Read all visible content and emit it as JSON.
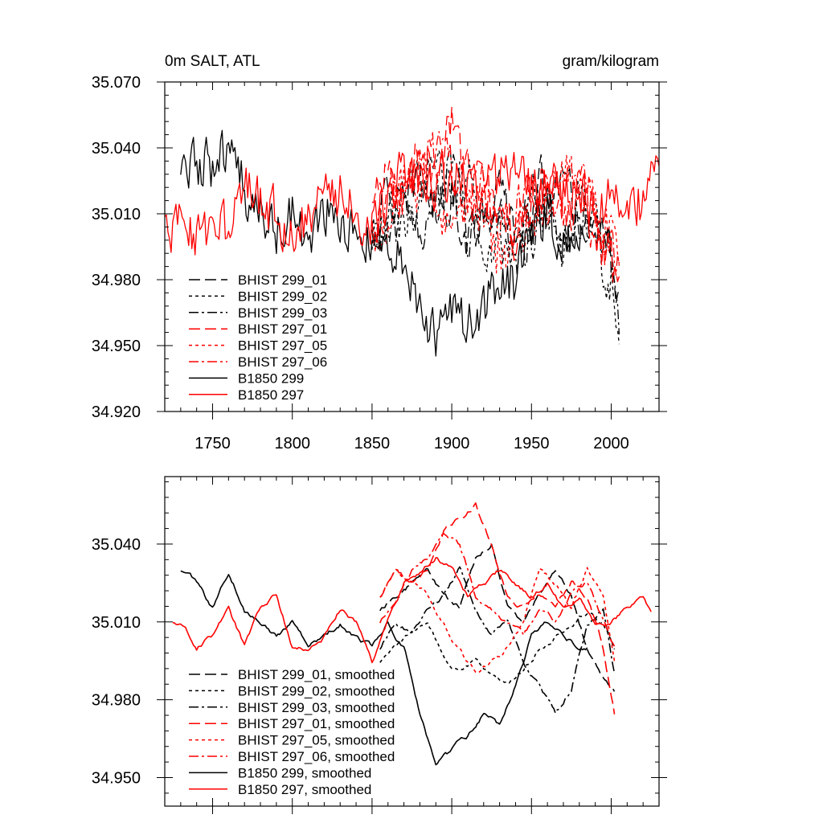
{
  "chart_data": [
    {
      "type": "line",
      "title_left": "0m SALT, ATL",
      "title_right": "gram/kilogram",
      "xlabel": "",
      "ylabel": "",
      "xlim": [
        1720,
        2030
      ],
      "ylim": [
        34.92,
        35.07
      ],
      "xticks": [
        "1750",
        "1800",
        "1850",
        "1900",
        "1950",
        "2000"
      ],
      "yticks": [
        "35.070",
        "35.040",
        "35.010",
        "34.980",
        "34.950",
        "34.920"
      ],
      "colors": {
        "black": "#000000",
        "red": "#ff0000"
      },
      "series": [
        {
          "name": "BHIST 299_01",
          "color": "#000000",
          "dash": "long-dash",
          "x": [
            1850,
            1860,
            1870,
            1880,
            1890,
            1900,
            1910,
            1920,
            1930,
            1940,
            1950,
            1960,
            1970,
            1980,
            1990,
            2000,
            2005
          ],
          "values": [
            35.0,
            35.02,
            35.01,
            35.03,
            35.01,
            35.02,
            35.0,
            35.01,
            35.02,
            35.0,
            35.01,
            35.03,
            35.02,
            35.01,
            35.0,
            34.99,
            34.97
          ]
        },
        {
          "name": "BHIST 299_02",
          "color": "#000000",
          "dash": "short-dash",
          "x": [
            1850,
            1860,
            1870,
            1880,
            1890,
            1900,
            1910,
            1920,
            1930,
            1940,
            1950,
            1960,
            1970,
            1980,
            1990,
            2000,
            2005
          ],
          "values": [
            34.99,
            35.01,
            35.0,
            35.02,
            35.04,
            35.01,
            35.03,
            34.98,
            35.0,
            34.99,
            35.02,
            35.01,
            34.99,
            35.02,
            35.0,
            34.98,
            34.95
          ]
        },
        {
          "name": "BHIST 299_03",
          "color": "#000000",
          "dash": "dash-dot",
          "x": [
            1850,
            1860,
            1870,
            1880,
            1890,
            1900,
            1910,
            1920,
            1930,
            1940,
            1950,
            1960,
            1970,
            1980,
            1990,
            2000,
            2005
          ],
          "values": [
            35.0,
            35.0,
            35.01,
            35.0,
            35.02,
            35.03,
            35.0,
            35.01,
            35.01,
            34.99,
            35.0,
            35.01,
            35.0,
            35.01,
            35.01,
            34.99,
            34.96
          ]
        },
        {
          "name": "BHIST 297_01",
          "color": "#ff0000",
          "dash": "long-dash",
          "x": [
            1850,
            1860,
            1870,
            1880,
            1890,
            1900,
            1910,
            1920,
            1930,
            1940,
            1950,
            1960,
            1970,
            1980,
            1990,
            2000,
            2005
          ],
          "values": [
            35.01,
            35.03,
            35.02,
            35.04,
            35.03,
            35.05,
            35.03,
            35.02,
            35.01,
            35.0,
            35.02,
            35.03,
            35.01,
            35.02,
            35.0,
            34.99,
            34.97
          ]
        },
        {
          "name": "BHIST 297_05",
          "color": "#ff0000",
          "dash": "short-dash",
          "x": [
            1850,
            1860,
            1870,
            1880,
            1890,
            1900,
            1910,
            1920,
            1930,
            1940,
            1950,
            1960,
            1970,
            1980,
            1990,
            2000,
            2005
          ],
          "values": [
            35.0,
            35.01,
            35.03,
            35.02,
            35.01,
            35.0,
            35.02,
            35.01,
            34.99,
            35.0,
            35.01,
            35.02,
            35.03,
            35.02,
            35.01,
            35.0,
            34.98
          ]
        },
        {
          "name": "BHIST 297_06",
          "color": "#ff0000",
          "dash": "dash-dot",
          "x": [
            1850,
            1860,
            1870,
            1880,
            1890,
            1900,
            1910,
            1920,
            1930,
            1940,
            1950,
            1960,
            1970,
            1980,
            1990,
            2000,
            2005
          ],
          "values": [
            35.0,
            35.02,
            35.02,
            35.03,
            35.04,
            35.03,
            35.01,
            35.02,
            35.0,
            35.01,
            35.02,
            35.01,
            35.02,
            35.03,
            35.01,
            35.0,
            34.99
          ]
        },
        {
          "name": "B1850 299",
          "color": "#000000",
          "dash": "solid",
          "x": [
            1730,
            1740,
            1750,
            1760,
            1770,
            1780,
            1790,
            1800,
            1810,
            1820,
            1830,
            1840,
            1850,
            1860,
            1870,
            1880,
            1890,
            1900,
            1910,
            1920,
            1930,
            1940,
            1950,
            1960,
            1970,
            1980,
            1985
          ],
          "values": [
            35.02,
            35.035,
            35.03,
            35.04,
            35.02,
            35.01,
            35.0,
            35.01,
            35.0,
            35.01,
            35.005,
            35.0,
            34.995,
            35.0,
            34.99,
            34.97,
            34.95,
            34.965,
            34.96,
            34.97,
            34.975,
            34.98,
            35.0,
            35.01,
            35.0,
            34.995,
            35.0
          ]
        },
        {
          "name": "B1850 297",
          "color": "#ff0000",
          "dash": "solid",
          "x": [
            1720,
            1730,
            1740,
            1750,
            1760,
            1770,
            1780,
            1790,
            1800,
            1810,
            1820,
            1830,
            1840,
            1850,
            1860,
            1870,
            1880,
            1890,
            1900,
            1910,
            1920,
            1930,
            1940,
            1950,
            1960,
            1970,
            1980,
            1990,
            2000,
            2010,
            2020,
            2025,
            2030
          ],
          "values": [
            35.0,
            35.01,
            35.0,
            35.005,
            35.0,
            35.02,
            35.015,
            35.01,
            35.0,
            35.01,
            35.015,
            35.02,
            35.01,
            35.005,
            35.02,
            35.03,
            35.025,
            35.02,
            35.03,
            35.025,
            35.02,
            35.025,
            35.03,
            35.02,
            35.025,
            35.015,
            35.02,
            35.01,
            35.015,
            35.01,
            35.015,
            35.04,
            35.02
          ]
        }
      ],
      "legend": [
        "BHIST 299_01",
        "BHIST 299_02",
        "BHIST 299_03",
        "BHIST 297_01",
        "BHIST 297_05",
        "BHIST 297_06",
        "B1850 299",
        "B1850 297"
      ]
    },
    {
      "type": "line",
      "xlabel": "",
      "ylabel": "",
      "xlim": [
        1720,
        2030
      ],
      "ylim": [
        34.939,
        35.066
      ],
      "xticks": [],
      "yticks": [
        "35.040",
        "35.010",
        "34.980",
        "34.950"
      ],
      "series": [
        {
          "name": "BHIST 299_01, smoothed",
          "color": "#000000",
          "dash": "long-dash",
          "x": [
            1855,
            1865,
            1875,
            1885,
            1895,
            1905,
            1915,
            1925,
            1935,
            1945,
            1955,
            1965,
            1975,
            1985,
            1995,
            2002
          ],
          "values": [
            35.015,
            35.02,
            35.025,
            35.03,
            35.02,
            35.015,
            35.035,
            35.04,
            35.015,
            35.01,
            35.02,
            35.03,
            35.02,
            35.0,
            34.99,
            34.985
          ]
        },
        {
          "name": "BHIST 299_02, smoothed",
          "color": "#000000",
          "dash": "short-dash",
          "x": [
            1855,
            1865,
            1875,
            1885,
            1895,
            1905,
            1915,
            1925,
            1935,
            1945,
            1955,
            1965,
            1975,
            1985,
            1995,
            2002
          ],
          "values": [
            34.995,
            35.0,
            35.005,
            35.01,
            34.995,
            34.99,
            34.995,
            34.99,
            34.985,
            34.99,
            35.0,
            35.005,
            35.01,
            35.015,
            35.01,
            35.0
          ]
        },
        {
          "name": "BHIST 299_03, smoothed",
          "color": "#000000",
          "dash": "dash-dot",
          "x": [
            1855,
            1865,
            1875,
            1885,
            1895,
            1905,
            1915,
            1925,
            1935,
            1945,
            1955,
            1965,
            1975,
            1985,
            1995,
            2002
          ],
          "values": [
            35.0,
            35.01,
            35.005,
            35.015,
            35.02,
            35.03,
            35.015,
            35.005,
            35.01,
            34.995,
            34.985,
            34.975,
            34.985,
            35.01,
            35.015,
            34.99
          ]
        },
        {
          "name": "BHIST 297_01, smoothed",
          "color": "#ff0000",
          "dash": "long-dash",
          "x": [
            1855,
            1865,
            1875,
            1885,
            1895,
            1905,
            1915,
            1925,
            1935,
            1945,
            1955,
            1965,
            1975,
            1985,
            1995,
            2002
          ],
          "values": [
            35.02,
            35.03,
            35.025,
            35.03,
            35.045,
            35.05,
            35.055,
            35.04,
            35.02,
            35.015,
            35.02,
            35.015,
            35.025,
            35.02,
            35.0,
            34.975
          ]
        },
        {
          "name": "BHIST 297_05, smoothed",
          "color": "#ff0000",
          "dash": "short-dash",
          "x": [
            1855,
            1865,
            1875,
            1885,
            1895,
            1905,
            1915,
            1925,
            1935,
            1945,
            1955,
            1965,
            1975,
            1985,
            1995,
            2002
          ],
          "values": [
            35.02,
            35.03,
            35.025,
            35.02,
            35.01,
            35.0,
            34.99,
            34.995,
            35.0,
            35.01,
            35.03,
            35.025,
            35.015,
            35.03,
            35.02,
            34.995
          ]
        },
        {
          "name": "BHIST 297_06, smoothed",
          "color": "#ff0000",
          "dash": "dash-dot",
          "x": [
            1855,
            1865,
            1875,
            1885,
            1895,
            1905,
            1915,
            1925,
            1935,
            1945,
            1955,
            1965,
            1975,
            1985,
            1995,
            2002
          ],
          "values": [
            35.01,
            35.02,
            35.03,
            35.035,
            35.045,
            35.04,
            35.02,
            35.015,
            35.01,
            35.005,
            35.015,
            35.01,
            35.02,
            35.025,
            35.01,
            35.0
          ]
        },
        {
          "name": "B1850 299, smoothed",
          "color": "#000000",
          "dash": "solid",
          "x": [
            1730,
            1740,
            1750,
            1760,
            1770,
            1780,
            1790,
            1800,
            1810,
            1820,
            1830,
            1840,
            1850,
            1860,
            1870,
            1880,
            1890,
            1900,
            1910,
            1920,
            1930,
            1940,
            1950,
            1960,
            1970,
            1980,
            1985
          ],
          "values": [
            35.03,
            35.025,
            35.015,
            35.03,
            35.015,
            35.01,
            35.005,
            35.01,
            35.0,
            35.005,
            35.01,
            35.005,
            35.0,
            35.01,
            35.0,
            34.975,
            34.955,
            34.96,
            34.965,
            34.975,
            34.97,
            34.985,
            35.005,
            35.01,
            35.005,
            35.0,
            35.0
          ]
        },
        {
          "name": "B1850 297, smoothed",
          "color": "#ff0000",
          "dash": "solid",
          "x": [
            1725,
            1730,
            1740,
            1750,
            1760,
            1770,
            1780,
            1790,
            1800,
            1810,
            1820,
            1830,
            1840,
            1850,
            1860,
            1870,
            1880,
            1890,
            1900,
            1910,
            1920,
            1930,
            1940,
            1950,
            1960,
            1970,
            1980,
            1990,
            2000,
            2010,
            2020,
            2025
          ],
          "values": [
            35.01,
            35.01,
            35.0,
            35.005,
            35.015,
            35.0,
            35.015,
            35.02,
            35.0,
            35.0,
            35.005,
            35.015,
            35.01,
            34.995,
            35.01,
            35.025,
            35.03,
            35.035,
            35.03,
            35.02,
            35.025,
            35.03,
            35.025,
            35.02,
            35.025,
            35.015,
            35.02,
            35.01,
            35.01,
            35.015,
            35.02,
            35.015
          ]
        }
      ],
      "legend": [
        "BHIST 299_01, smoothed",
        "BHIST 299_02, smoothed",
        "BHIST 299_03, smoothed",
        "BHIST 297_01, smoothed",
        "BHIST 297_05, smoothed",
        "BHIST 297_06, smoothed",
        "B1850 299, smoothed",
        "B1850 297, smoothed"
      ]
    }
  ]
}
